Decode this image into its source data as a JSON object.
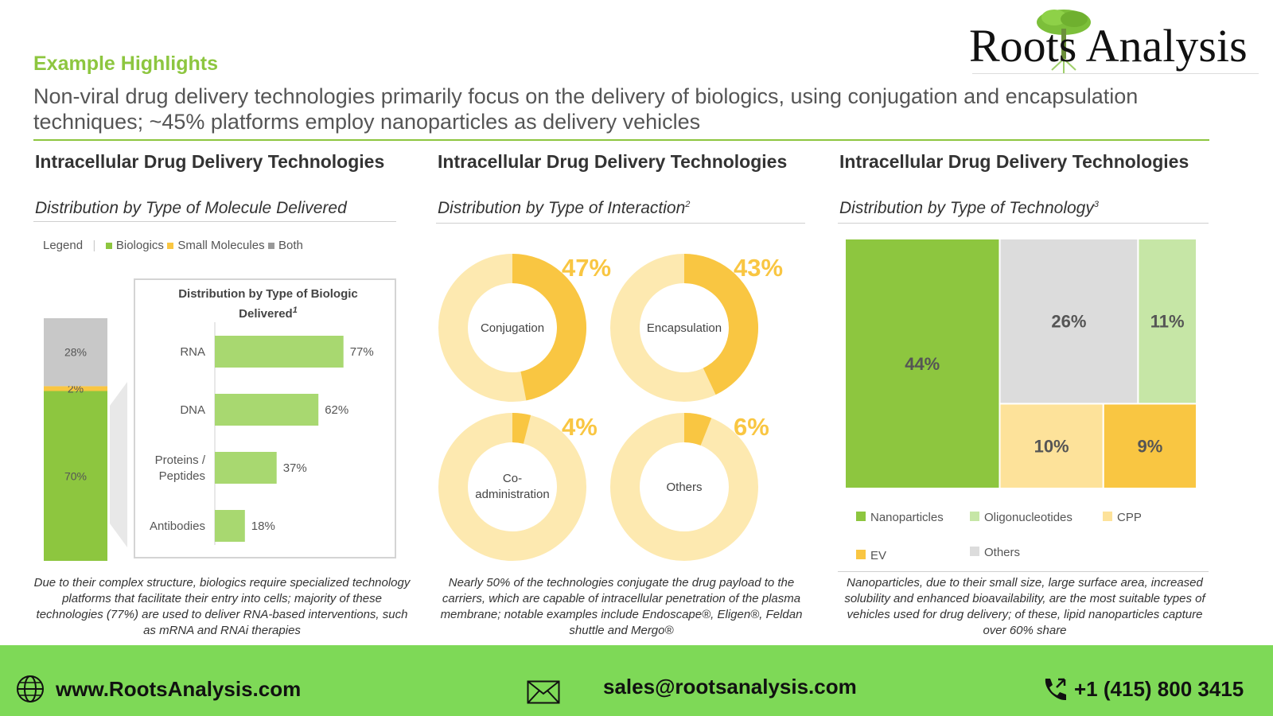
{
  "header": {
    "highlight": "Example Highlights",
    "subtitle": "Non-viral drug delivery technologies primarily focus on the delivery of biologics, using conjugation and encapsulation techniques; ~45% platforms employ nanoparticles as delivery vehicles",
    "brand": "Roots Analysis"
  },
  "panel1": {
    "title": "Intracellular Drug Delivery Technologies",
    "subtitle": "Distribution by Type of Molecule Delivered",
    "caption": "Due to their complex structure, biologics require specialized technology platforms that facilitate their entry into cells; majority of these technologies (77%) are used to deliver RNA-based interventions, such as mRNA and RNAi therapies"
  },
  "panel2": {
    "title": "Intracellular Drug Delivery Technologies",
    "subtitle": "Distribution by Type of Interaction",
    "sup": "2",
    "caption": "Nearly 50% of the technologies conjugate the drug payload to the carriers, which are capable of intracellular penetration of the plasma membrane; notable examples include Endoscape®, Eligen®, Feldan shuttle and Mergo®"
  },
  "panel3": {
    "title": "Intracellular Drug Delivery Technologies",
    "subtitle": "Distribution by Type of Technology",
    "sup": "3",
    "caption": "Nanoparticles, due to their small size, large surface area, increased solubility and enhanced bioavailability, are the most suitable types of vehicles used for drug delivery; of these, lipid nanoparticles capture over 60% share"
  },
  "footer": {
    "website": "www.RootsAnalysis.com",
    "email": "sales@rootsanalysis.com",
    "phone": "+1 (415) 800 3415"
  },
  "colors": {
    "green": "#8dc63f",
    "light_green": "#a8d870",
    "yellow": "#f9c642",
    "pale_yellow": "#fde9b0",
    "grey": "#c8c8c8",
    "footer_green": "#7ed957"
  },
  "chart_data": [
    {
      "type": "bar",
      "stacked": true,
      "legend_label": "Legend",
      "series": [
        {
          "name": "Biologics",
          "values": [
            70
          ],
          "labels": [
            "70%"
          ],
          "color": "#8dc63f"
        },
        {
          "name": "Small Molecules",
          "values": [
            2
          ],
          "labels": [
            "2%"
          ],
          "color": "#f9c642"
        },
        {
          "name": "Both",
          "values": [
            28
          ],
          "labels": [
            "28%"
          ],
          "color": "#c8c8c8"
        }
      ],
      "ylim": [
        0,
        100
      ]
    },
    {
      "type": "bar",
      "orientation": "horizontal",
      "title": "Distribution by Type of Biologic Delivered",
      "title_sup": "1",
      "categories": [
        "RNA",
        "DNA",
        "Proteins / Peptides",
        "Antibodies"
      ],
      "values": [
        77,
        62,
        37,
        18
      ],
      "labels": [
        "77%",
        "62%",
        "37%",
        "18%"
      ],
      "xlim": [
        0,
        100
      ]
    },
    {
      "type": "pie",
      "variant": "donut-set",
      "items": [
        {
          "name": "Conjugation",
          "value": 47,
          "label": "47%"
        },
        {
          "name": "Encapsulation",
          "value": 43,
          "label": "43%"
        },
        {
          "name": "Co-administration",
          "value": 4,
          "label": "4%"
        },
        {
          "name": "Others",
          "value": 6,
          "label": "6%"
        }
      ]
    },
    {
      "type": "heatmap",
      "variant": "treemap",
      "items": [
        {
          "name": "Nanoparticles",
          "value": 44,
          "label": "44%",
          "color": "#8dc63f"
        },
        {
          "name": "Others",
          "value": 26,
          "label": "26%",
          "color": "#dcdcdc"
        },
        {
          "name": "Oligonucleotides",
          "value": 11,
          "label": "11%",
          "color": "#c6e6a6"
        },
        {
          "name": "CPP",
          "value": 10,
          "label": "10%",
          "color": "#fde29a"
        },
        {
          "name": "EV",
          "value": 9,
          "label": "9%",
          "color": "#f9c642"
        }
      ],
      "legend": [
        "Nanoparticles",
        "Oligonucleotides",
        "CPP",
        "EV",
        "Others"
      ]
    }
  ]
}
